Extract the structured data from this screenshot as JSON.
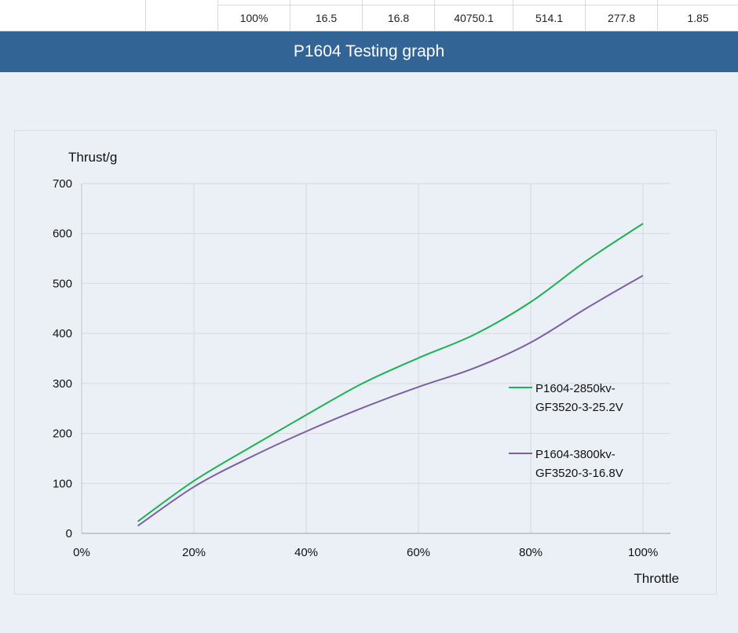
{
  "table": {
    "row": [
      "",
      "",
      "100%",
      "16.5",
      "16.8",
      "40750.1",
      "514.1",
      "277.8",
      "1.85"
    ]
  },
  "banner": {
    "title": "P1604 Testing graph"
  },
  "chart_data": {
    "type": "line",
    "ylabel": "Thrust/g",
    "xlabel": "Throttle",
    "x_ticks": [
      "0%",
      "20%",
      "40%",
      "60%",
      "80%",
      "100%"
    ],
    "y_ticks": [
      "0",
      "100",
      "200",
      "300",
      "400",
      "500",
      "600",
      "700"
    ],
    "xlim": [
      0,
      100
    ],
    "ylim": [
      0,
      700
    ],
    "grid": true,
    "legend_position": "right",
    "x": [
      10,
      20,
      30,
      40,
      50,
      60,
      70,
      80,
      90,
      100
    ],
    "series": [
      {
        "name_lines": [
          "P1604-2850kv-",
          "GF3520-3-25.2V"
        ],
        "color": "#1db154",
        "values": [
          24,
          105,
          172,
          237,
          300,
          351,
          398,
          463,
          546,
          620
        ]
      },
      {
        "name_lines": [
          "P1604-3800kv-",
          "GF3520-3-16.8V"
        ],
        "color": "#7c5fa4",
        "values": [
          15,
          93,
          152,
          204,
          251,
          293,
          331,
          382,
          451,
          516
        ]
      }
    ]
  }
}
